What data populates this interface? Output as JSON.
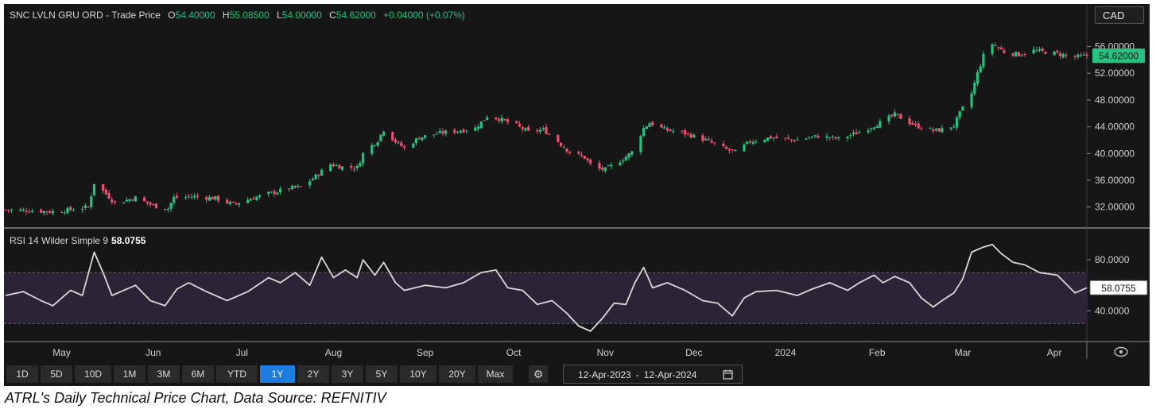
{
  "header": {
    "symbol_label": "SNC LVLN GRU ORD - Trade Price",
    "open_key": "O",
    "open": "54.40000",
    "high_key": "H",
    "high": "55.08500",
    "low_key": "L",
    "low": "54.00000",
    "close_key": "C",
    "close": "54.62000",
    "change": "+0.04000 (+0.07%)"
  },
  "currency": "CAD",
  "rsi_header": {
    "label": "RSI 14 Wilder Simple 9",
    "value": "58.0755"
  },
  "colors": {
    "up": "#26c281",
    "down": "#f0506e",
    "rsi_line": "#d9d9d9",
    "rsi_band": "#2a2436",
    "background": "#161616",
    "active": "#1e7be0"
  },
  "periods": [
    "1D",
    "5D",
    "10D",
    "1M",
    "3M",
    "6M",
    "YTD",
    "1Y",
    "2Y",
    "3Y",
    "5Y",
    "10Y",
    "20Y",
    "Max"
  ],
  "active_period": "1Y",
  "settings_icon": "gear-icon",
  "date_range": {
    "from": "12-Apr-2023",
    "separator": "-",
    "to": "12-Apr-2024",
    "icon": "calendar-icon"
  },
  "timeline_icon": "eye-icon",
  "caption": "ATRL's Daily Technical Price Chart, Data Source: REFNITIV",
  "chart_data": [
    {
      "type": "candlestick",
      "title": "SNC LVLN GRU ORD - Trade Price",
      "y_ticks": [
        "56.00000",
        "52.00000",
        "48.00000",
        "44.00000",
        "40.00000",
        "36.00000",
        "32.00000"
      ],
      "ylim": [
        29.0,
        58.2
      ],
      "last_price_label": "54.62000",
      "x_ticks": [
        "May",
        "Jun",
        "Jul",
        "Aug",
        "Sep",
        "Oct",
        "Nov",
        "Dec",
        "2024",
        "Feb",
        "Mar",
        "Apr"
      ],
      "x_tick_dates": [
        "2023-05-01",
        "2023-06-01",
        "2023-07-01",
        "2023-08-01",
        "2023-09-01",
        "2023-10-01",
        "2023-11-01",
        "2023-12-01",
        "2024-01-01",
        "2024-02-01",
        "2024-03-01",
        "2024-04-01"
      ],
      "x_range": [
        "2023-04-12",
        "2024-04-12"
      ],
      "close_points": [
        [
          "2023-04-12",
          31.6
        ],
        [
          "2023-04-20",
          31.5
        ],
        [
          "2023-04-28",
          31.3
        ],
        [
          "2023-05-04",
          31.6
        ],
        [
          "2023-05-10",
          32.0
        ],
        [
          "2023-05-12",
          35.6
        ],
        [
          "2023-05-16",
          34.0
        ],
        [
          "2023-05-19",
          32.6
        ],
        [
          "2023-05-26",
          33.4
        ],
        [
          "2023-06-01",
          32.2
        ],
        [
          "2023-06-06",
          31.8
        ],
        [
          "2023-06-08",
          33.4
        ],
        [
          "2023-06-15",
          33.6
        ],
        [
          "2023-06-22",
          33.3
        ],
        [
          "2023-06-28",
          32.4
        ],
        [
          "2023-07-05",
          33.4
        ],
        [
          "2023-07-12",
          34.2
        ],
        [
          "2023-07-17",
          34.8
        ],
        [
          "2023-07-21",
          35.0
        ],
        [
          "2023-07-26",
          36.6
        ],
        [
          "2023-07-31",
          38.4
        ],
        [
          "2023-08-04",
          38.0
        ],
        [
          "2023-08-09",
          37.9
        ],
        [
          "2023-08-11",
          40.0
        ],
        [
          "2023-08-16",
          42.0
        ],
        [
          "2023-08-18",
          43.6
        ],
        [
          "2023-08-22",
          41.8
        ],
        [
          "2023-08-25",
          40.8
        ],
        [
          "2023-08-30",
          42.4
        ],
        [
          "2023-09-05",
          43.0
        ],
        [
          "2023-09-12",
          43.4
        ],
        [
          "2023-09-18",
          43.8
        ],
        [
          "2023-09-22",
          45.6
        ],
        [
          "2023-09-26",
          45.2
        ],
        [
          "2023-10-02",
          44.2
        ],
        [
          "2023-10-06",
          43.2
        ],
        [
          "2023-10-11",
          43.6
        ],
        [
          "2023-10-16",
          41.8
        ],
        [
          "2023-10-20",
          40.2
        ],
        [
          "2023-10-25",
          39.4
        ],
        [
          "2023-10-28",
          37.8
        ],
        [
          "2023-11-01",
          37.6
        ],
        [
          "2023-11-07",
          39.2
        ],
        [
          "2023-11-10",
          40.2
        ],
        [
          "2023-11-14",
          43.8
        ],
        [
          "2023-11-16",
          44.6
        ],
        [
          "2023-11-21",
          43.6
        ],
        [
          "2023-11-28",
          43.0
        ],
        [
          "2023-12-05",
          42.0
        ],
        [
          "2023-12-12",
          40.6
        ],
        [
          "2023-12-15",
          40.2
        ],
        [
          "2023-12-20",
          41.8
        ],
        [
          "2023-12-27",
          42.4
        ],
        [
          "2024-01-04",
          42.0
        ],
        [
          "2024-01-12",
          42.6
        ],
        [
          "2024-01-19",
          42.2
        ],
        [
          "2024-01-26",
          43.2
        ],
        [
          "2024-02-02",
          44.6
        ],
        [
          "2024-02-07",
          45.8
        ],
        [
          "2024-02-14",
          44.2
        ],
        [
          "2024-02-20",
          43.4
        ],
        [
          "2024-02-23",
          43.6
        ],
        [
          "2024-02-27",
          44.2
        ],
        [
          "2024-02-29",
          46.0
        ],
        [
          "2024-03-04",
          49.0
        ],
        [
          "2024-03-06",
          52.0
        ],
        [
          "2024-03-08",
          54.6
        ],
        [
          "2024-03-11",
          56.4
        ],
        [
          "2024-03-15",
          55.2
        ],
        [
          "2024-03-20",
          54.8
        ],
        [
          "2024-03-25",
          55.4
        ],
        [
          "2024-04-01",
          55.0
        ],
        [
          "2024-04-08",
          54.4
        ],
        [
          "2024-04-12",
          54.62
        ]
      ]
    },
    {
      "type": "line",
      "title": "RSI 14 Wilder Simple 9",
      "y_ticks": [
        "80.0000",
        "40.0000"
      ],
      "ylim": [
        16.5,
        105.0
      ],
      "band": [
        30,
        70
      ],
      "last_value_label": "58.0755",
      "points": [
        [
          "2023-04-12",
          52.0
        ],
        [
          "2023-04-18",
          55.0
        ],
        [
          "2023-04-24",
          48.0
        ],
        [
          "2023-04-28",
          44.0
        ],
        [
          "2023-05-04",
          56.0
        ],
        [
          "2023-05-08",
          52.0
        ],
        [
          "2023-05-12",
          86.0
        ],
        [
          "2023-05-15",
          70.0
        ],
        [
          "2023-05-18",
          52.0
        ],
        [
          "2023-05-22",
          56.0
        ],
        [
          "2023-05-26",
          60.0
        ],
        [
          "2023-05-31",
          48.0
        ],
        [
          "2023-06-05",
          44.0
        ],
        [
          "2023-06-09",
          57.0
        ],
        [
          "2023-06-13",
          62.0
        ],
        [
          "2023-06-19",
          55.0
        ],
        [
          "2023-06-26",
          48.0
        ],
        [
          "2023-07-03",
          55.0
        ],
        [
          "2023-07-10",
          66.0
        ],
        [
          "2023-07-14",
          62.0
        ],
        [
          "2023-07-19",
          70.0
        ],
        [
          "2023-07-24",
          60.0
        ],
        [
          "2023-07-28",
          82.0
        ],
        [
          "2023-08-01",
          66.0
        ],
        [
          "2023-08-05",
          72.0
        ],
        [
          "2023-08-09",
          66.0
        ],
        [
          "2023-08-11",
          80.0
        ],
        [
          "2023-08-15",
          68.0
        ],
        [
          "2023-08-18",
          78.0
        ],
        [
          "2023-08-22",
          62.0
        ],
        [
          "2023-08-25",
          56.0
        ],
        [
          "2023-09-01",
          60.0
        ],
        [
          "2023-09-08",
          58.0
        ],
        [
          "2023-09-14",
          62.0
        ],
        [
          "2023-09-20",
          70.0
        ],
        [
          "2023-09-25",
          72.0
        ],
        [
          "2023-09-29",
          58.0
        ],
        [
          "2023-10-04",
          56.0
        ],
        [
          "2023-10-09",
          45.0
        ],
        [
          "2023-10-14",
          48.0
        ],
        [
          "2023-10-19",
          38.0
        ],
        [
          "2023-10-23",
          28.0
        ],
        [
          "2023-10-27",
          24.0
        ],
        [
          "2023-10-31",
          34.0
        ],
        [
          "2023-11-04",
          46.0
        ],
        [
          "2023-11-08",
          45.0
        ],
        [
          "2023-11-11",
          62.0
        ],
        [
          "2023-11-14",
          74.0
        ],
        [
          "2023-11-17",
          58.0
        ],
        [
          "2023-11-22",
          62.0
        ],
        [
          "2023-11-28",
          56.0
        ],
        [
          "2023-12-04",
          48.0
        ],
        [
          "2023-12-09",
          46.0
        ],
        [
          "2023-12-14",
          36.0
        ],
        [
          "2023-12-18",
          50.0
        ],
        [
          "2023-12-22",
          55.0
        ],
        [
          "2023-12-29",
          56.0
        ],
        [
          "2024-01-05",
          52.0
        ],
        [
          "2024-01-10",
          57.0
        ],
        [
          "2024-01-16",
          62.0
        ],
        [
          "2024-01-22",
          56.0
        ],
        [
          "2024-01-26",
          62.0
        ],
        [
          "2024-01-31",
          68.0
        ],
        [
          "2024-02-03",
          62.0
        ],
        [
          "2024-02-07",
          67.0
        ],
        [
          "2024-02-12",
          62.0
        ],
        [
          "2024-02-16",
          50.0
        ],
        [
          "2024-02-20",
          43.0
        ],
        [
          "2024-02-23",
          48.0
        ],
        [
          "2024-02-27",
          54.0
        ],
        [
          "2024-03-01",
          65.0
        ],
        [
          "2024-03-04",
          86.0
        ],
        [
          "2024-03-08",
          90.0
        ],
        [
          "2024-03-11",
          92.0
        ],
        [
          "2024-03-14",
          85.0
        ],
        [
          "2024-03-18",
          78.0
        ],
        [
          "2024-03-22",
          76.0
        ],
        [
          "2024-03-27",
          70.0
        ],
        [
          "2024-04-02",
          68.0
        ],
        [
          "2024-04-08",
          54.0
        ],
        [
          "2024-04-12",
          58.08
        ]
      ]
    }
  ]
}
